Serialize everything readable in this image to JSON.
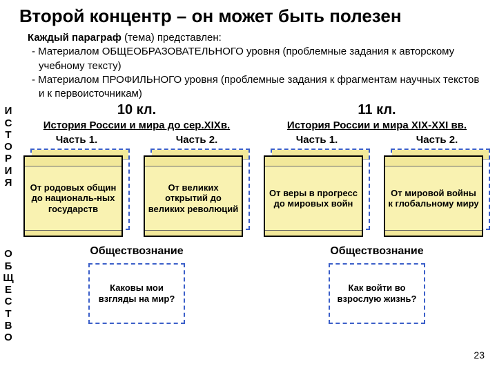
{
  "title": "Второй концентр – он может быть полезен",
  "intro": {
    "lead": "Каждый параграф",
    "lead_tail": " (тема) представлен:",
    "items": [
      "-  Материалом ОБЩЕОБРАЗОВАТЕЛЬНОГО уровня (проблемные задания к авторскому учебному тексту)",
      "-  Материалом ПРОФИЛЬНОГО уровня (проблемные задания к фрагментам научных текстов и к первоисточникам)"
    ]
  },
  "vlabels": {
    "history": "ИСТОРИЯ",
    "society": "ОБЩЕСТВО"
  },
  "grades": {
    "left": "10 кл.",
    "right": "11 кл."
  },
  "history": {
    "left": {
      "subject": "История России и мира до сер.XIXв.",
      "parts": {
        "p1": {
          "label": "Часть 1.",
          "text": "От родовых общин до националь-ных государств"
        },
        "p2": {
          "label": "Часть 2.",
          "text": "От великих открытий до великих революций"
        }
      }
    },
    "right": {
      "subject": "История России и мира XIX-XXI вв.",
      "parts": {
        "p1": {
          "label": "Часть 1.",
          "text": "От веры в прогресс до мировых войн"
        },
        "p2": {
          "label": "Часть 2.",
          "text": "От мировой войны к глобальному миру"
        }
      }
    }
  },
  "society": {
    "left": {
      "title": "Обществознание",
      "box": "Каковы мои взгляды на мир?"
    },
    "right": {
      "title": "Обществознание",
      "box": "Как войти во взрослую жизнь?"
    }
  },
  "page": "23",
  "colors": {
    "dash_border": "#3b5fc9",
    "book_yellow": "#f9f2b1",
    "book_header": "#f2e89a"
  }
}
